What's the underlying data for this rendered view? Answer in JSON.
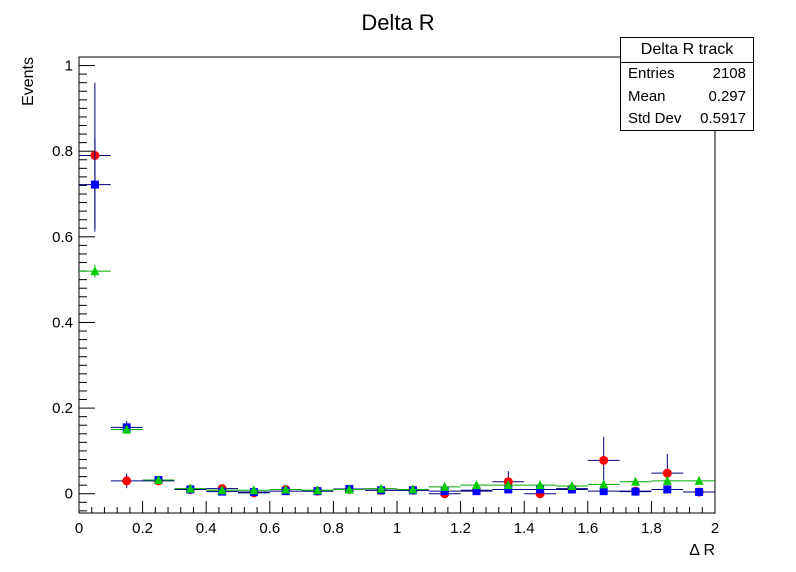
{
  "chart_data": {
    "type": "scatter",
    "title": "Delta R",
    "xlabel": "Δ R",
    "ylabel": "Events",
    "xlim": [
      0,
      2
    ],
    "ylim": [
      -0.045,
      1.02
    ],
    "x_ticks": [
      "0",
      "0.2",
      "0.4",
      "0.6",
      "0.8",
      "1",
      "1.2",
      "1.4",
      "1.6",
      "1.8",
      "2"
    ],
    "y_ticks": [
      "0",
      "0.2",
      "0.4",
      "0.6",
      "0.8",
      "1"
    ],
    "x_bin_centers": [
      0.05,
      0.15,
      0.25,
      0.35,
      0.45,
      0.55,
      0.65,
      0.75,
      0.85,
      0.95,
      1.05,
      1.15,
      1.25,
      1.35,
      1.45,
      1.55,
      1.65,
      1.75,
      1.85,
      1.95
    ],
    "x_bin_half_width": 0.05,
    "series": [
      {
        "marker": "circle",
        "color": "#ff0000",
        "values": [
          0.79,
          0.03,
          0.03,
          0.01,
          0.012,
          0.002,
          0.01,
          0.006,
          0.01,
          0.008,
          0.008,
          0.0,
          0.008,
          0.028,
          0.0,
          0.012,
          0.078,
          0.006,
          0.048,
          0.004
        ],
        "errors": [
          0.17,
          0.017,
          0.009,
          0.004,
          0.004,
          0.002,
          0.004,
          0.003,
          0.004,
          0.003,
          0.003,
          0.001,
          0.004,
          0.025,
          0.001,
          0.008,
          0.055,
          0.004,
          0.045,
          0.004
        ]
      },
      {
        "marker": "square",
        "color": "#0000ff",
        "values": [
          0.722,
          0.155,
          0.032,
          0.01,
          0.005,
          0.004,
          0.006,
          0.006,
          0.011,
          0.008,
          0.008,
          0.006,
          0.006,
          0.01,
          0.01,
          0.01,
          0.006,
          0.005,
          0.01,
          0.004
        ],
        "errors": [
          0.11,
          0.015,
          0.006,
          0.003,
          0.002,
          0.002,
          0.002,
          0.002,
          0.003,
          0.002,
          0.002,
          0.002,
          0.002,
          0.003,
          0.003,
          0.003,
          0.002,
          0.002,
          0.003,
          0.002
        ]
      },
      {
        "marker": "triangle",
        "color": "#00cc00",
        "values": [
          0.52,
          0.15,
          0.032,
          0.012,
          0.008,
          0.008,
          0.01,
          0.008,
          0.01,
          0.012,
          0.01,
          0.016,
          0.02,
          0.02,
          0.02,
          0.018,
          0.022,
          0.028,
          0.03,
          0.03
        ],
        "errors": [
          0.015,
          0.008,
          0.003,
          0.002,
          0.002,
          0.002,
          0.002,
          0.002,
          0.002,
          0.002,
          0.002,
          0.003,
          0.003,
          0.003,
          0.003,
          0.003,
          0.003,
          0.004,
          0.004,
          0.004
        ]
      }
    ],
    "stats": {
      "title": "Delta R track",
      "rows": [
        {
          "label": "Entries",
          "value": "2108"
        },
        {
          "label": "Mean",
          "value": "0.297"
        },
        {
          "label": "Std Dev",
          "value": "0.5917"
        }
      ]
    }
  }
}
